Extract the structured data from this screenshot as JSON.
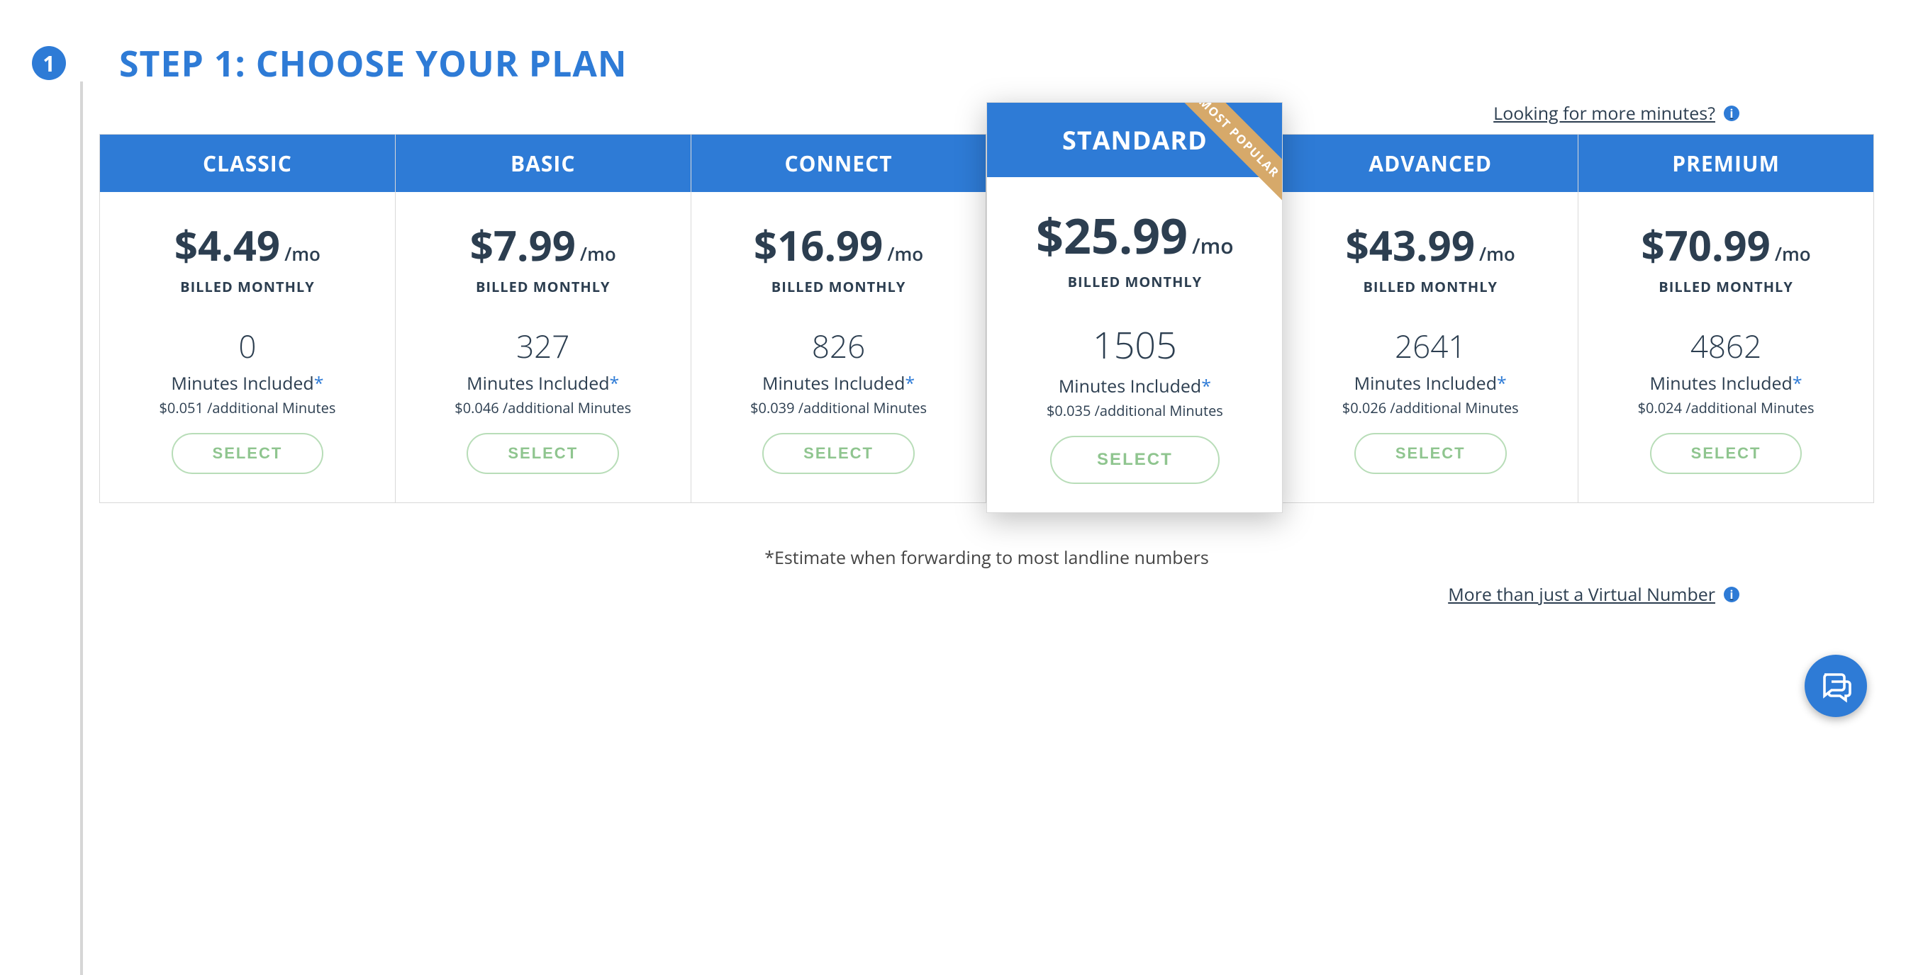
{
  "step": {
    "badge": "1",
    "title": "STEP 1: CHOOSE YOUR PLAN"
  },
  "links": {
    "more_minutes": "Looking for more minutes?",
    "more_than": "More than just a Virtual Number"
  },
  "footnote": "*Estimate when forwarding to most landline numbers",
  "common": {
    "per": "/mo",
    "billed": "BILLED MONTHLY",
    "mins_label": "Minutes Included",
    "asterisk": "*",
    "select": "SELECT",
    "ribbon": "MOST POPULAR"
  },
  "plans": [
    {
      "name": "CLASSIC",
      "price": "$4.49",
      "minutes": "0",
      "additional": "$0.051 /additional Minutes",
      "featured": false
    },
    {
      "name": "BASIC",
      "price": "$7.99",
      "minutes": "327",
      "additional": "$0.046 /additional Minutes",
      "featured": false
    },
    {
      "name": "CONNECT",
      "price": "$16.99",
      "minutes": "826",
      "additional": "$0.039 /additional Minutes",
      "featured": false
    },
    {
      "name": "STANDARD",
      "price": "$25.99",
      "minutes": "1505",
      "additional": "$0.035 /additional Minutes",
      "featured": true
    },
    {
      "name": "ADVANCED",
      "price": "$43.99",
      "minutes": "2641",
      "additional": "$0.026 /additional Minutes",
      "featured": false
    },
    {
      "name": "PREMIUM",
      "price": "$70.99",
      "minutes": "4862",
      "additional": "$0.024 /additional Minutes",
      "featured": false
    }
  ],
  "colors": {
    "accent": "#2e7bd6",
    "text": "#2c3e50",
    "button_border": "#b8ddb8",
    "button_text": "#8fc58f",
    "ribbon": "#d6a96a",
    "rule": "#d6d6d6",
    "card_border": "#d9d9d9"
  }
}
